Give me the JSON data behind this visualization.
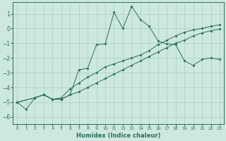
{
  "xlabel": "Humidex (Indice chaleur)",
  "bg_color": "#cce8df",
  "line_color": "#2e6e5e",
  "grid_color": "#aacfc5",
  "xlim": [
    -0.5,
    23.5
  ],
  "ylim": [
    -6.5,
    1.8
  ],
  "xticks": [
    0,
    1,
    2,
    3,
    4,
    5,
    6,
    7,
    8,
    9,
    10,
    11,
    12,
    13,
    14,
    15,
    16,
    17,
    18,
    19,
    20,
    21,
    22,
    23
  ],
  "yticks": [
    -6,
    -5,
    -4,
    -3,
    -2,
    -1,
    0,
    1
  ],
  "line1_x": [
    0,
    1,
    2,
    3,
    4,
    5,
    6,
    7,
    8,
    9,
    10,
    11,
    12,
    13,
    14,
    15,
    16,
    17,
    18,
    19,
    20,
    21,
    22,
    23
  ],
  "line1_y": [
    -5.0,
    -5.5,
    -4.7,
    -4.5,
    -4.8,
    -4.8,
    -4.5,
    -2.8,
    -2.7,
    -1.1,
    -1.05,
    1.1,
    0.0,
    1.5,
    0.6,
    0.15,
    -0.85,
    -1.05,
    -1.1,
    -2.2,
    -2.5,
    -2.1,
    -2.0,
    -2.1
  ],
  "line2_x": [
    0,
    2,
    3,
    4,
    5,
    6,
    7,
    8,
    9,
    10,
    11,
    12,
    13,
    14,
    15,
    16,
    17,
    18,
    19,
    20,
    21,
    22,
    23
  ],
  "line2_y": [
    -5.0,
    -4.7,
    -4.5,
    -4.8,
    -4.8,
    -4.5,
    -4.3,
    -4.0,
    -3.7,
    -3.4,
    -3.1,
    -2.8,
    -2.5,
    -2.2,
    -1.9,
    -1.6,
    -1.3,
    -1.0,
    -0.8,
    -0.5,
    -0.3,
    -0.15,
    -0.05
  ],
  "line3_x": [
    0,
    2,
    3,
    4,
    5,
    6,
    7,
    8,
    9,
    10,
    11,
    12,
    13,
    14,
    15,
    16,
    17,
    18,
    19,
    20,
    21,
    22,
    23
  ],
  "line3_y": [
    -5.0,
    -4.7,
    -4.5,
    -4.8,
    -4.7,
    -4.1,
    -3.7,
    -3.3,
    -3.0,
    -2.6,
    -2.4,
    -2.2,
    -2.0,
    -1.8,
    -1.5,
    -1.1,
    -0.8,
    -0.5,
    -0.25,
    -0.1,
    0.0,
    0.15,
    0.25
  ]
}
